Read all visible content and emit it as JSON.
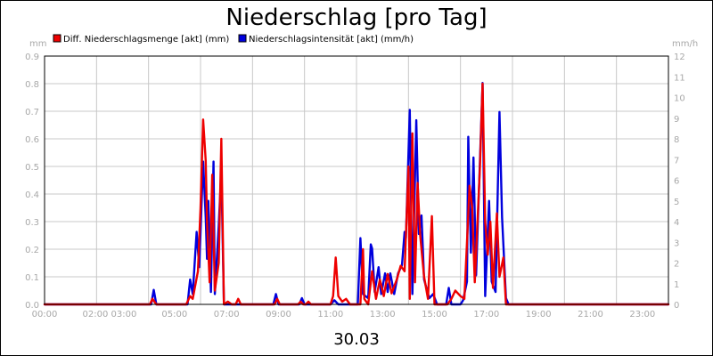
{
  "chart_data": {
    "type": "line",
    "title": "Niederschlag [pro Tag]",
    "xlabel": "30.03",
    "y_left_unit": "mm",
    "y_right_unit": "mm/h",
    "y_left_range": [
      0,
      0.9
    ],
    "y_right_range": [
      0,
      12
    ],
    "y_left_ticks": [
      "0.0",
      "0.1",
      "0.2",
      "0.3",
      "0.4",
      "0.5",
      "0.6",
      "0.7",
      "0.8",
      "0.9"
    ],
    "y_right_ticks": [
      "0",
      "1",
      "2",
      "3",
      "4",
      "5",
      "6",
      "7",
      "8",
      "9",
      "10",
      "11",
      "12"
    ],
    "x_range_hours": [
      0,
      24
    ],
    "x_ticks": [
      {
        "h": 0,
        "label": "00:00"
      },
      {
        "h": 2.5,
        "label": "02:00 03:00"
      },
      {
        "h": 5,
        "label": "05:00"
      },
      {
        "h": 7,
        "label": "07:00"
      },
      {
        "h": 9,
        "label": "09:00"
      },
      {
        "h": 11,
        "label": "11:00"
      },
      {
        "h": 13,
        "label": "13:00"
      },
      {
        "h": 15,
        "label": "15:00"
      },
      {
        "h": 17,
        "label": "17:00"
      },
      {
        "h": 19,
        "label": "19:00"
      },
      {
        "h": 21,
        "label": "21:00"
      },
      {
        "h": 23,
        "label": "23:00"
      }
    ],
    "grid": true,
    "legend_position": "top-left",
    "series": [
      {
        "name": "Niederschlagsintensität [akt] (mm/h)",
        "axis": "right",
        "color": "#0000dd",
        "points": [
          [
            0,
            0
          ],
          [
            4.1,
            0
          ],
          [
            4.2,
            0.7
          ],
          [
            4.3,
            0
          ],
          [
            5.5,
            0
          ],
          [
            5.6,
            1.2
          ],
          [
            5.7,
            0.5
          ],
          [
            5.85,
            3.5
          ],
          [
            5.95,
            1.8
          ],
          [
            6.1,
            6.9
          ],
          [
            6.2,
            4.2
          ],
          [
            6.25,
            2.2
          ],
          [
            6.3,
            5
          ],
          [
            6.4,
            0.6
          ],
          [
            6.5,
            6.9
          ],
          [
            6.55,
            0.5
          ],
          [
            6.7,
            3.8
          ],
          [
            6.8,
            6.5
          ],
          [
            6.9,
            0
          ],
          [
            7.5,
            0
          ],
          [
            8.8,
            0
          ],
          [
            8.9,
            0.5
          ],
          [
            9.0,
            0
          ],
          [
            9.8,
            0
          ],
          [
            9.9,
            0.3
          ],
          [
            10.0,
            0
          ],
          [
            11.0,
            0
          ],
          [
            11.15,
            0.2
          ],
          [
            11.3,
            0
          ],
          [
            11.8,
            0
          ],
          [
            12.05,
            0
          ],
          [
            12.15,
            3.2
          ],
          [
            12.25,
            0.5
          ],
          [
            12.45,
            0.3
          ],
          [
            12.55,
            2.9
          ],
          [
            12.6,
            2.7
          ],
          [
            12.7,
            0.6
          ],
          [
            12.85,
            1.8
          ],
          [
            12.95,
            0.5
          ],
          [
            13.1,
            1.5
          ],
          [
            13.2,
            0.6
          ],
          [
            13.3,
            1.5
          ],
          [
            13.45,
            0.5
          ],
          [
            13.6,
            1.5
          ],
          [
            13.75,
            1.9
          ],
          [
            13.85,
            3.5
          ],
          [
            13.9,
            3.2
          ],
          [
            14.05,
            9.4
          ],
          [
            14.15,
            0.5
          ],
          [
            14.3,
            8.9
          ],
          [
            14.4,
            3.4
          ],
          [
            14.5,
            4.3
          ],
          [
            14.6,
            1.2
          ],
          [
            14.8,
            0.3
          ],
          [
            14.95,
            0.5
          ],
          [
            15.1,
            0
          ],
          [
            15.45,
            0
          ],
          [
            15.55,
            0.8
          ],
          [
            15.65,
            0
          ],
          [
            16.0,
            0
          ],
          [
            16.1,
            0.2
          ],
          [
            16.25,
            1.1
          ],
          [
            16.3,
            8.1
          ],
          [
            16.4,
            2.5
          ],
          [
            16.5,
            7.1
          ],
          [
            16.6,
            1.4
          ],
          [
            16.85,
            10.7
          ],
          [
            16.95,
            0.4
          ],
          [
            17.1,
            5
          ],
          [
            17.2,
            1.1
          ],
          [
            17.35,
            0.6
          ],
          [
            17.5,
            9.3
          ],
          [
            17.6,
            4.2
          ],
          [
            17.75,
            0.3
          ],
          [
            17.85,
            0
          ],
          [
            24,
            0
          ]
        ]
      },
      {
        "name": "Diff. Niederschlagsmenge [akt] (mm)",
        "axis": "left",
        "color": "#ee0000",
        "points": [
          [
            0,
            0
          ],
          [
            4.05,
            0
          ],
          [
            4.15,
            0.02
          ],
          [
            4.3,
            0
          ],
          [
            5.45,
            0
          ],
          [
            5.6,
            0.03
          ],
          [
            5.7,
            0.02
          ],
          [
            5.9,
            0.12
          ],
          [
            6.0,
            0.35
          ],
          [
            6.1,
            0.67
          ],
          [
            6.2,
            0.52
          ],
          [
            6.25,
            0.3
          ],
          [
            6.35,
            0.08
          ],
          [
            6.45,
            0.47
          ],
          [
            6.55,
            0.05
          ],
          [
            6.7,
            0.15
          ],
          [
            6.8,
            0.6
          ],
          [
            6.9,
            0
          ],
          [
            7.05,
            0.01
          ],
          [
            7.2,
            0
          ],
          [
            7.35,
            0
          ],
          [
            7.45,
            0.02
          ],
          [
            7.55,
            0
          ],
          [
            8.85,
            0
          ],
          [
            8.95,
            0.02
          ],
          [
            9.05,
            0
          ],
          [
            9.75,
            0
          ],
          [
            9.85,
            0.01
          ],
          [
            9.95,
            0
          ],
          [
            10.05,
            0
          ],
          [
            10.15,
            0.01
          ],
          [
            10.25,
            0
          ],
          [
            11.0,
            0
          ],
          [
            11.1,
            0.03
          ],
          [
            11.2,
            0.17
          ],
          [
            11.3,
            0.03
          ],
          [
            11.45,
            0.01
          ],
          [
            11.6,
            0.02
          ],
          [
            11.75,
            0
          ],
          [
            12.15,
            0
          ],
          [
            12.25,
            0.2
          ],
          [
            12.3,
            0.02
          ],
          [
            12.45,
            0
          ],
          [
            12.6,
            0.12
          ],
          [
            12.75,
            0.02
          ],
          [
            12.9,
            0.09
          ],
          [
            13.05,
            0.03
          ],
          [
            13.2,
            0.11
          ],
          [
            13.35,
            0.04
          ],
          [
            13.55,
            0.09
          ],
          [
            13.7,
            0.14
          ],
          [
            13.85,
            0.12
          ],
          [
            14.0,
            0.5
          ],
          [
            14.05,
            0.02
          ],
          [
            14.15,
            0.62
          ],
          [
            14.25,
            0.08
          ],
          [
            14.35,
            0.44
          ],
          [
            14.45,
            0.25
          ],
          [
            14.6,
            0.1
          ],
          [
            14.75,
            0.02
          ],
          [
            14.9,
            0.32
          ],
          [
            15.0,
            0
          ],
          [
            15.5,
            0
          ],
          [
            15.65,
            0.02
          ],
          [
            15.8,
            0.05
          ],
          [
            16.0,
            0.03
          ],
          [
            16.15,
            0.02
          ],
          [
            16.35,
            0.43
          ],
          [
            16.45,
            0.35
          ],
          [
            16.55,
            0.08
          ],
          [
            16.75,
            0.5
          ],
          [
            16.85,
            0.8
          ],
          [
            16.95,
            0.3
          ],
          [
            17.05,
            0.18
          ],
          [
            17.15,
            0.3
          ],
          [
            17.25,
            0.06
          ],
          [
            17.4,
            0.33
          ],
          [
            17.5,
            0.1
          ],
          [
            17.65,
            0.17
          ],
          [
            17.75,
            0
          ],
          [
            18.0,
            0
          ],
          [
            24,
            0
          ]
        ]
      }
    ]
  }
}
